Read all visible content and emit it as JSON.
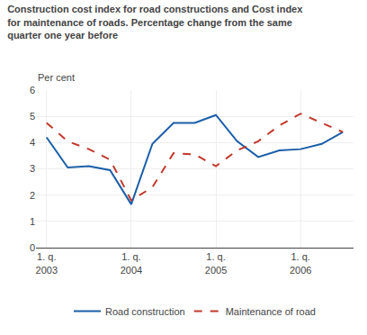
{
  "chart_data": {
    "type": "line",
    "title": "Construction cost index for road constructions and Cost index\nfor maintenance of roads. Percentage change from the same\nquarter one year before",
    "ylabel": "Per cent",
    "categories": [
      "1. q.\n2003",
      null,
      null,
      null,
      "1. q.\n2004",
      null,
      null,
      null,
      "1. q.\n2005",
      null,
      null,
      null,
      "1. q.\n2006",
      null,
      null
    ],
    "series": [
      {
        "name": "Road construction",
        "color": "#1a5ea8",
        "line_style": "solid",
        "values": [
          4.2,
          3.05,
          3.1,
          2.95,
          1.65,
          3.95,
          4.75,
          4.75,
          5.05,
          4.05,
          3.45,
          3.7,
          3.75,
          3.95,
          4.4
        ]
      },
      {
        "name": "Maintenance of road",
        "color": "#c0392b",
        "line_style": "dashed",
        "values": [
          4.75,
          4.05,
          3.75,
          3.35,
          1.8,
          2.3,
          3.6,
          3.55,
          3.1,
          3.7,
          4.05,
          4.65,
          5.1,
          4.75,
          4.4
        ]
      }
    ],
    "ylim": [
      0,
      6
    ],
    "yticks": [
      0,
      1,
      2,
      3,
      4,
      5,
      6
    ],
    "grid": true,
    "legend": "bottom"
  }
}
